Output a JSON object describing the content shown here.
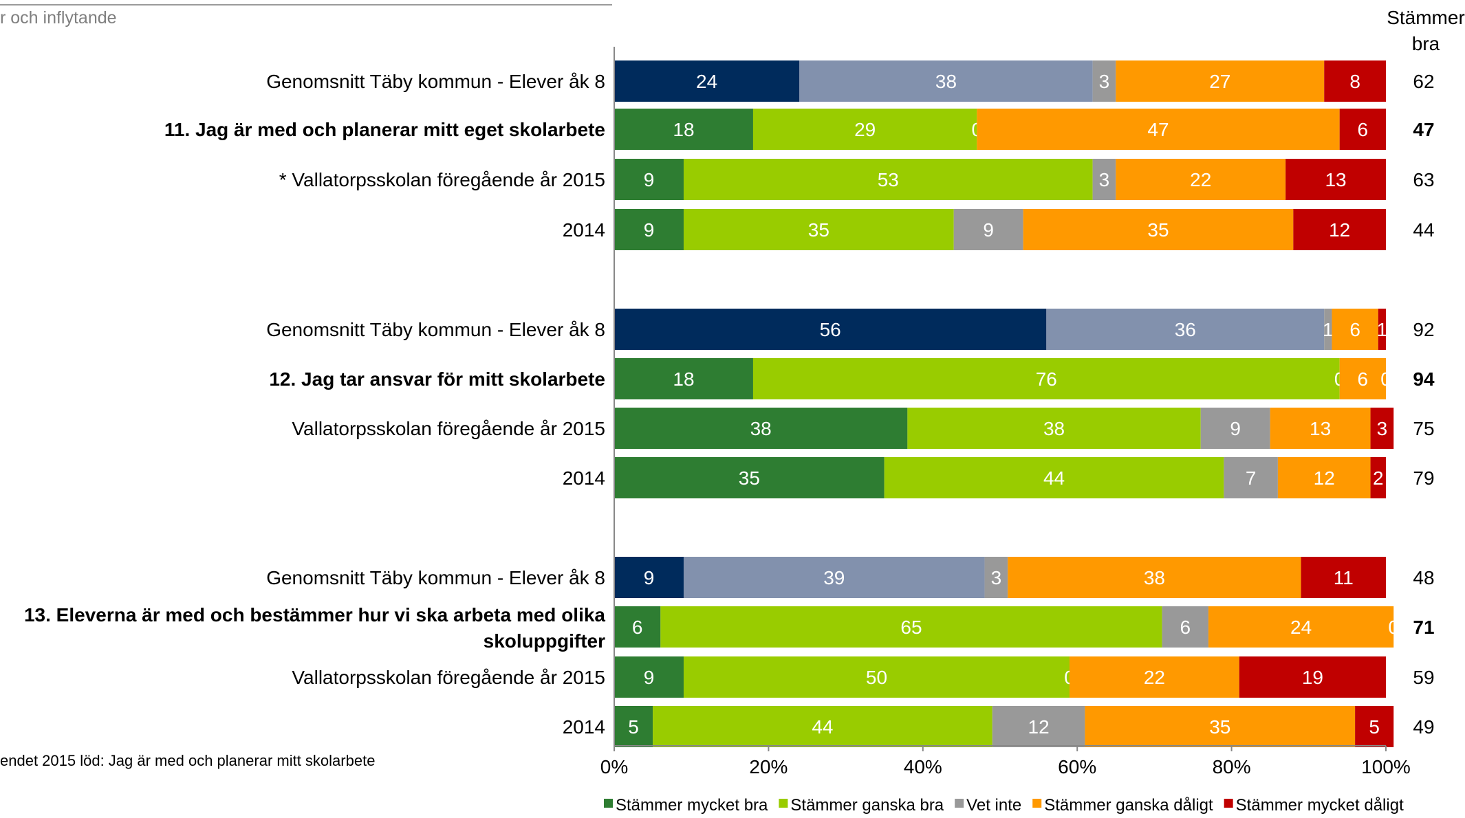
{
  "header": {
    "title": "r och inflytande",
    "column_header_line1": "Stämmer",
    "column_header_line2": "bra"
  },
  "footnote": "endet 2015 löd: Jag är med och planerar mitt skolarbete",
  "chart_data": {
    "type": "bar",
    "orientation": "horizontal",
    "stacked": true,
    "xlim": [
      0,
      100
    ],
    "x_ticks": [
      "0%",
      "20%",
      "40%",
      "60%",
      "80%",
      "100%"
    ],
    "legend_position": "bottom",
    "series": [
      {
        "name": "Stämmer mycket bra",
        "color": "#2e7d32"
      },
      {
        "name": "Stämmer ganska bra",
        "color": "#99cc00"
      },
      {
        "name": "Vet inte",
        "color": "#999999"
      },
      {
        "name": "Stämmer ganska dåligt",
        "color": "#ff9900"
      },
      {
        "name": "Stämmer mycket dåligt",
        "color": "#c00000"
      }
    ],
    "kommun_colors": {
      "mycket_bra": "#002b5c",
      "vet_inte_ganska_bra": "#8291ad"
    },
    "groups": [
      {
        "rows": [
          {
            "label": "Genomsnitt Täby kommun - Elever åk 8",
            "kind": "kommun",
            "bold": false,
            "values": [
              24,
              38,
              3,
              27,
              8
            ],
            "labels": [
              "24",
              "38",
              "3",
              "27",
              "8"
            ],
            "total": "62"
          },
          {
            "label": "11. Jag är med och planerar mitt eget skolarbete",
            "kind": "school",
            "bold": true,
            "values": [
              18,
              29,
              0,
              47,
              6
            ],
            "labels": [
              "18",
              "29",
              "0",
              "47",
              "6"
            ],
            "total": "47"
          },
          {
            "label": "* Vallatorpsskolan föregående år 2015",
            "kind": "school",
            "bold": false,
            "values": [
              9,
              53,
              3,
              22,
              13
            ],
            "labels": [
              "9",
              "53",
              "3",
              "22",
              "13"
            ],
            "total": "63"
          },
          {
            "label": "2014",
            "kind": "school",
            "bold": false,
            "values": [
              9,
              35,
              9,
              35,
              12
            ],
            "labels": [
              "9",
              "35",
              "9",
              "35",
              "12"
            ],
            "total": "44"
          }
        ]
      },
      {
        "rows": [
          {
            "label": "Genomsnitt Täby kommun - Elever åk 8",
            "kind": "kommun",
            "bold": false,
            "values": [
              56,
              36,
              1,
              6,
              1
            ],
            "labels": [
              "56",
              "36",
              "1",
              "6",
              "1"
            ],
            "total": "92"
          },
          {
            "label": "12. Jag tar ansvar för mitt skolarbete",
            "kind": "school",
            "bold": true,
            "values": [
              18,
              76,
              0,
              6,
              0
            ],
            "labels": [
              "18",
              "76",
              "0",
              "6",
              "0"
            ],
            "total": "94"
          },
          {
            "label": "Vallatorpsskolan föregående år 2015",
            "kind": "school",
            "bold": false,
            "values": [
              38,
              38,
              9,
              13,
              3
            ],
            "labels": [
              "38",
              "38",
              "9",
              "13",
              "3"
            ],
            "total": "75"
          },
          {
            "label": "2014",
            "kind": "school",
            "bold": false,
            "values": [
              35,
              44,
              7,
              12,
              2
            ],
            "labels": [
              "35",
              "44",
              "7",
              "12",
              "2"
            ],
            "total": "79"
          }
        ]
      },
      {
        "rows": [
          {
            "label": "Genomsnitt Täby kommun - Elever åk 8",
            "kind": "kommun",
            "bold": false,
            "values": [
              9,
              39,
              3,
              38,
              11
            ],
            "labels": [
              "9",
              "39",
              "3",
              "38",
              "11"
            ],
            "total": "48"
          },
          {
            "label": "13. Eleverna är med och bestämmer hur vi ska arbeta med olika skoluppgifter",
            "label_lines": [
              "13. Eleverna är med och bestämmer hur vi ska arbeta med olika",
              "skoluppgifter"
            ],
            "kind": "school",
            "bold": true,
            "values": [
              6,
              65,
              6,
              24,
              0
            ],
            "labels": [
              "6",
              "65",
              "6",
              "24",
              "0"
            ],
            "total": "71"
          },
          {
            "label": "Vallatorpsskolan föregående år 2015",
            "kind": "school",
            "bold": false,
            "values": [
              9,
              50,
              0,
              22,
              19
            ],
            "labels": [
              "9",
              "50",
              "0",
              "22",
              "19"
            ],
            "total": "59"
          },
          {
            "label": "2014",
            "kind": "school",
            "bold": false,
            "values": [
              5,
              44,
              12,
              35,
              5
            ],
            "labels": [
              "5",
              "44",
              "12",
              "35",
              "5"
            ],
            "total": "49"
          }
        ]
      }
    ]
  }
}
